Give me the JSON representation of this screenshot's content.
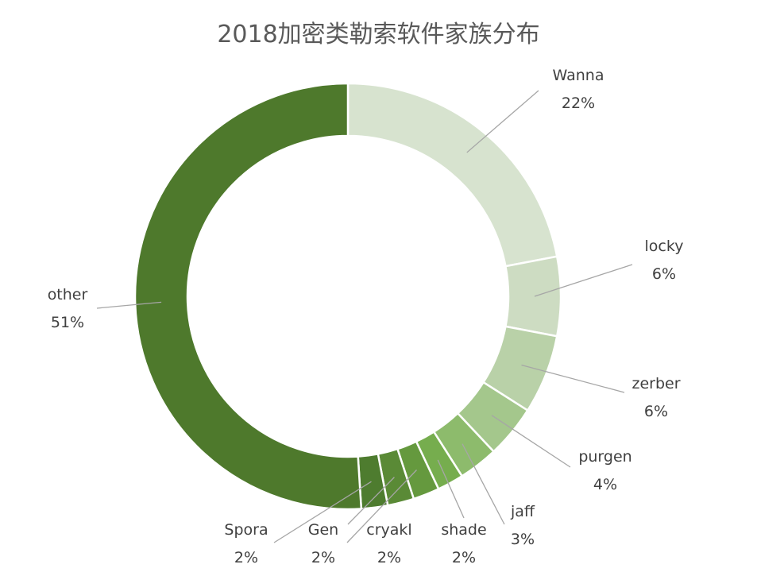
{
  "chart_data": {
    "type": "pie",
    "variant": "donut",
    "title": "2018加密类勒索软件家族分布",
    "legend": "none",
    "slices": [
      {
        "label": "Wanna",
        "pct_label": "22%",
        "value": 22,
        "color": "#d7e3cf"
      },
      {
        "label": "locky",
        "pct_label": "6%",
        "value": 6,
        "color": "#cddcc2"
      },
      {
        "label": "zerber",
        "pct_label": "6%",
        "value": 6,
        "color": "#b9d1a8"
      },
      {
        "label": "purgen",
        "pct_label": "4%",
        "value": 4,
        "color": "#a4c78c"
      },
      {
        "label": "jaff",
        "pct_label": "3%",
        "value": 3,
        "color": "#8dbb6c"
      },
      {
        "label": "shade",
        "pct_label": "2%",
        "value": 2,
        "color": "#76ad4e"
      },
      {
        "label": "cryakl",
        "pct_label": "2%",
        "value": 2,
        "color": "#65993e"
      },
      {
        "label": "Gen",
        "pct_label": "2%",
        "value": 2,
        "color": "#5a8a36"
      },
      {
        "label": "Spora",
        "pct_label": "2%",
        "value": 2,
        "color": "#4e7c2f"
      },
      {
        "label": "other",
        "pct_label": "51%",
        "value": 51,
        "color": "#4e792c"
      }
    ]
  }
}
